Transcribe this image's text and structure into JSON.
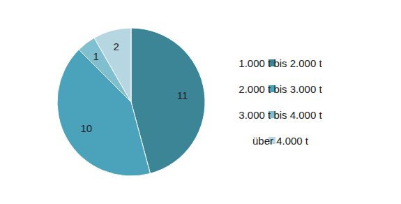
{
  "chart_data": {
    "type": "pie",
    "categories": [
      "1.000 t bis 2.000 t",
      "2.000 t bis 3.000 t",
      "3.000 t bis 4.000 t",
      "über 4.000 t"
    ],
    "values": [
      11,
      10,
      1,
      2
    ],
    "colors": [
      "#3b8597",
      "#4aa3ba",
      "#7fbfd0",
      "#b6d7e1"
    ],
    "data_labels": true,
    "legend": "right"
  }
}
